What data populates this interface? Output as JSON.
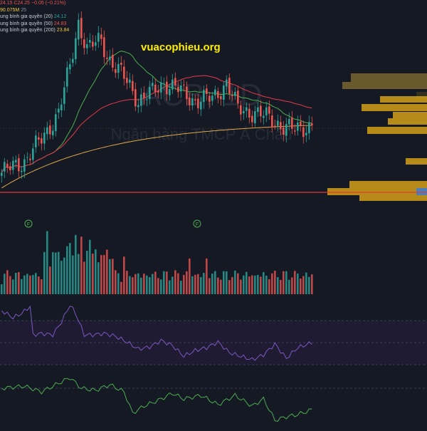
{
  "legend": {
    "ohlc_low": "24.15",
    "ohlc_close": "C24.25",
    "ohlc_change": "−0.05 (−0.21%)",
    "volume": "90.075M",
    "volume_extra": "25 ",
    "ma20_label": "ung bình gia quyền (20)",
    "ma20_value": "24.12",
    "ma50_label": "ung bình gia quyền (50)",
    "ma50_value": "24.83",
    "ma200_label": "ung bình gia quyền (200)",
    "ma200_value": "23.84"
  },
  "watermark": {
    "symbol": "ACB, 1D",
    "company": "Ngân hàng TMCP Á Châu"
  },
  "site_label": "vuacophieu.org",
  "event_markers": [
    "F",
    "F"
  ],
  "colors": {
    "background": "#151924",
    "up": "#26a69a",
    "down": "#ef5350",
    "ma20": "#4caf50",
    "ma50": "#e5394a",
    "ma200": "#e0a84a",
    "rsi": "#7e57c2",
    "osc": "#4caf50",
    "volume_profile": "#d4a017",
    "volume_profile_dim": "#7a6530",
    "support_line": "#e53935",
    "site": "#ffee00"
  },
  "chart_data": {
    "type": "candlestick",
    "symbol": "ACB",
    "interval": "1D",
    "price_indicators": [
      "MA20",
      "MA50",
      "MA200",
      "volume profile"
    ],
    "lower_panes": [
      "volume",
      "RSI",
      "oscillator"
    ],
    "support_line": true,
    "grid": false
  }
}
